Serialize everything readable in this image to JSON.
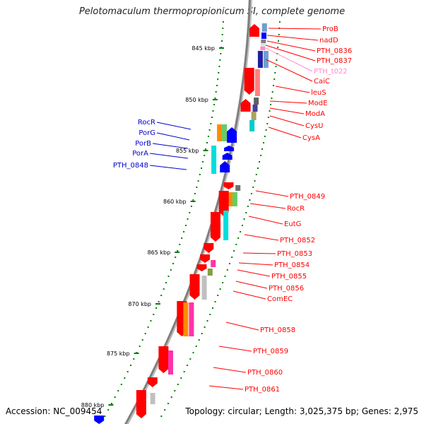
{
  "title": "Pelotomaculum thermopropionicum SI, complete genome",
  "accession": "Accession: NC_009454",
  "topology": "Topology: circular; Length: 3,025,375 bp; Genes: 2,975",
  "colors": {
    "backbone": "#808080",
    "forward_label": "#ff0000",
    "reverse_label": "#0000cc",
    "rna_label": "#ff8cc6",
    "tick": "#008000"
  },
  "ticks": [
    "845 kbp",
    "850 kbp",
    "855 kbp",
    "860 kbp",
    "865 kbp",
    "870 kbp",
    "875 kbp",
    "880 kbp"
  ],
  "labels_right": [
    "ProB",
    "nadD",
    "PTH_0836",
    "PTH_0837",
    "PTH_t022",
    "CaiC",
    "leuS",
    "ModE",
    "ModA",
    "CysU",
    "CysA",
    "PTH_0849",
    "RocR",
    "EutG",
    "PTH_0852",
    "PTH_0853",
    "PTH_0854",
    "PTH_0855",
    "PTH_0856",
    "ComEC",
    "PTH_0858",
    "PTH_0859",
    "PTH_0860",
    "PTH_0861"
  ],
  "labels_left": [
    "RocR",
    "PorG",
    "PorB",
    "PorA",
    "PTH_0848"
  ]
}
